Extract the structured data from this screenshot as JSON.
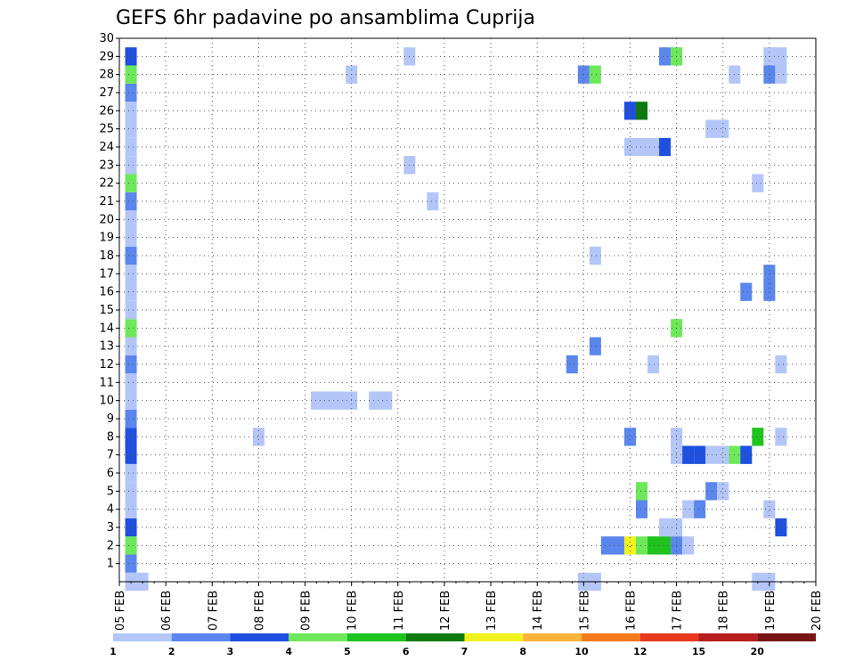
{
  "chart_data": {
    "type": "heatmap",
    "title": "GEFS 6hr padavine po ansamblima Cuprija",
    "xlabel": "",
    "ylabel": "",
    "x_ticks": [
      "05 FEB",
      "06 FEB",
      "07 FEB",
      "08 FEB",
      "09 FEB",
      "10 FEB",
      "11 FEB",
      "12 FEB",
      "13 FEB",
      "14 FEB",
      "15 FEB",
      "16 FEB",
      "17 FEB",
      "18 FEB",
      "19 FEB",
      "20 FEB"
    ],
    "y_ticks": [
      "1",
      "2",
      "3",
      "4",
      "5",
      "6",
      "7",
      "8",
      "9",
      "10",
      "11",
      "12",
      "13",
      "14",
      "15",
      "16",
      "17",
      "18",
      "19",
      "20",
      "21",
      "22",
      "23",
      "24",
      "25",
      "26",
      "27",
      "28",
      "29",
      "30"
    ],
    "xlim_days": [
      0,
      15
    ],
    "ylim": [
      0,
      30
    ],
    "grid": true,
    "colorbar": {
      "levels": [
        "1",
        "2",
        "3",
        "4",
        "5",
        "6",
        "7",
        "8",
        "10",
        "12",
        "15",
        "20"
      ],
      "colors": [
        "#b3c6f7",
        "#5a86ee",
        "#1e4fde",
        "#6ee85a",
        "#1ec31e",
        "#0e7a0e",
        "#f2f21e",
        "#fbb43c",
        "#f37a1e",
        "#e8381e",
        "#b81e1e",
        "#781414"
      ]
    },
    "cells": [
      {
        "member": 1,
        "day": 0.25,
        "w": 1,
        "c": 2
      },
      {
        "member": 2,
        "day": 0.25,
        "w": 1,
        "c": 4
      },
      {
        "member": 3,
        "day": 0.25,
        "w": 1,
        "c": 3
      },
      {
        "member": 4,
        "day": 0.25,
        "w": 1,
        "c": 1
      },
      {
        "member": 5,
        "day": 0.25,
        "w": 1,
        "c": 1
      },
      {
        "member": 6,
        "day": 0.25,
        "w": 1,
        "c": 1
      },
      {
        "member": 7,
        "day": 0.25,
        "w": 1,
        "c": 3
      },
      {
        "member": 8,
        "day": 0.25,
        "w": 1,
        "c": 3
      },
      {
        "member": 9,
        "day": 0.25,
        "w": 1,
        "c": 2
      },
      {
        "member": 10,
        "day": 0.25,
        "w": 1,
        "c": 1
      },
      {
        "member": 11,
        "day": 0.25,
        "w": 1,
        "c": 1
      },
      {
        "member": 12,
        "day": 0.25,
        "w": 1,
        "c": 2
      },
      {
        "member": 13,
        "day": 0.25,
        "w": 1,
        "c": 1
      },
      {
        "member": 14,
        "day": 0.25,
        "w": 1,
        "c": 4
      },
      {
        "member": 15,
        "day": 0.25,
        "w": 1,
        "c": 1
      },
      {
        "member": 16,
        "day": 0.25,
        "w": 1,
        "c": 1
      },
      {
        "member": 17,
        "day": 0.25,
        "w": 1,
        "c": 1
      },
      {
        "member": 18,
        "day": 0.25,
        "w": 1,
        "c": 2
      },
      {
        "member": 19,
        "day": 0.25,
        "w": 1,
        "c": 1
      },
      {
        "member": 20,
        "day": 0.25,
        "w": 1,
        "c": 1
      },
      {
        "member": 21,
        "day": 0.25,
        "w": 1,
        "c": 2
      },
      {
        "member": 22,
        "day": 0.25,
        "w": 1,
        "c": 4
      },
      {
        "member": 23,
        "day": 0.25,
        "w": 1,
        "c": 1
      },
      {
        "member": 24,
        "day": 0.25,
        "w": 1,
        "c": 1
      },
      {
        "member": 25,
        "day": 0.25,
        "w": 1,
        "c": 1
      },
      {
        "member": 26,
        "day": 0.25,
        "w": 1,
        "c": 1
      },
      {
        "member": 27,
        "day": 0.25,
        "w": 1,
        "c": 2
      },
      {
        "member": 28,
        "day": 0.25,
        "w": 1,
        "c": 4
      },
      {
        "member": 29,
        "day": 0.25,
        "w": 1,
        "c": 3
      },
      {
        "member": 0,
        "day": 0.25,
        "w": 1,
        "c": 1
      },
      {
        "member": 0,
        "day": 0.5,
        "w": 1,
        "c": 1
      },
      {
        "member": 8,
        "day": 3.0,
        "w": 1,
        "c": 1
      },
      {
        "member": 10,
        "day": 4.25,
        "w": 4,
        "c": 1
      },
      {
        "member": 10,
        "day": 5.5,
        "w": 2,
        "c": 1
      },
      {
        "member": 28,
        "day": 5.0,
        "w": 1,
        "c": 1
      },
      {
        "member": 29,
        "day": 6.25,
        "w": 1,
        "c": 1
      },
      {
        "member": 23,
        "day": 6.25,
        "w": 1,
        "c": 1
      },
      {
        "member": 21,
        "day": 6.75,
        "w": 1,
        "c": 1
      },
      {
        "member": 12,
        "day": 9.75,
        "w": 1,
        "c": 2
      },
      {
        "member": 13,
        "day": 10.25,
        "w": 1,
        "c": 2
      },
      {
        "member": 18,
        "day": 10.25,
        "w": 1,
        "c": 1
      },
      {
        "member": 28,
        "day": 10.0,
        "w": 1,
        "c": 2
      },
      {
        "member": 28,
        "day": 10.25,
        "w": 1,
        "c": 4
      },
      {
        "member": 0,
        "day": 10.0,
        "w": 2,
        "c": 1
      },
      {
        "member": 2,
        "day": 10.5,
        "w": 2,
        "c": 2
      },
      {
        "member": 2,
        "day": 11.0,
        "w": 1,
        "c": 7
      },
      {
        "member": 2,
        "day": 11.25,
        "w": 1,
        "c": 4
      },
      {
        "member": 2,
        "day": 11.5,
        "w": 2,
        "c": 5
      },
      {
        "member": 2,
        "day": 12.0,
        "w": 1,
        "c": 2
      },
      {
        "member": 2,
        "day": 12.25,
        "w": 1,
        "c": 1
      },
      {
        "member": 3,
        "day": 11.75,
        "w": 2,
        "c": 1
      },
      {
        "member": 4,
        "day": 11.25,
        "w": 1,
        "c": 2
      },
      {
        "member": 5,
        "day": 11.25,
        "w": 1,
        "c": 4
      },
      {
        "member": 4,
        "day": 12.25,
        "w": 1,
        "c": 1
      },
      {
        "member": 4,
        "day": 12.5,
        "w": 1,
        "c": 2
      },
      {
        "member": 5,
        "day": 12.75,
        "w": 1,
        "c": 2
      },
      {
        "member": 5,
        "day": 13.0,
        "w": 1,
        "c": 1
      },
      {
        "member": 7,
        "day": 12.0,
        "w": 1,
        "c": 1
      },
      {
        "member": 7,
        "day": 12.25,
        "w": 1,
        "c": 3
      },
      {
        "member": 7,
        "day": 12.5,
        "w": 1,
        "c": 3
      },
      {
        "member": 7,
        "day": 12.75,
        "w": 2,
        "c": 1
      },
      {
        "member": 7,
        "day": 13.25,
        "w": 1,
        "c": 4
      },
      {
        "member": 7,
        "day": 13.5,
        "w": 1,
        "c": 3
      },
      {
        "member": 8,
        "day": 11.0,
        "w": 1,
        "c": 2
      },
      {
        "member": 8,
        "day": 12.0,
        "w": 1,
        "c": 1
      },
      {
        "member": 8,
        "day": 13.75,
        "w": 1,
        "c": 5
      },
      {
        "member": 8,
        "day": 14.25,
        "w": 1,
        "c": 1
      },
      {
        "member": 12,
        "day": 11.5,
        "w": 1,
        "c": 1
      },
      {
        "member": 12,
        "day": 14.25,
        "w": 1,
        "c": 1
      },
      {
        "member": 14,
        "day": 12.0,
        "w": 1,
        "c": 4
      },
      {
        "member": 16,
        "day": 13.5,
        "w": 1,
        "c": 2
      },
      {
        "member": 16,
        "day": 14.0,
        "w": 1,
        "c": 2
      },
      {
        "member": 17,
        "day": 14.0,
        "w": 1,
        "c": 2
      },
      {
        "member": 22,
        "day": 13.75,
        "w": 1,
        "c": 1
      },
      {
        "member": 24,
        "day": 11.0,
        "w": 2,
        "c": 1
      },
      {
        "member": 24,
        "day": 11.5,
        "w": 1,
        "c": 1
      },
      {
        "member": 24,
        "day": 11.75,
        "w": 1,
        "c": 3
      },
      {
        "member": 25,
        "day": 12.75,
        "w": 2,
        "c": 1
      },
      {
        "member": 26,
        "day": 11.0,
        "w": 1,
        "c": 3
      },
      {
        "member": 26,
        "day": 11.25,
        "w": 1,
        "c": 6
      },
      {
        "member": 28,
        "day": 13.25,
        "w": 1,
        "c": 1
      },
      {
        "member": 28,
        "day": 14.0,
        "w": 1,
        "c": 2
      },
      {
        "member": 28,
        "day": 14.25,
        "w": 1,
        "c": 1
      },
      {
        "member": 29,
        "day": 11.75,
        "w": 1,
        "c": 2
      },
      {
        "member": 29,
        "day": 12.0,
        "w": 1,
        "c": 4
      },
      {
        "member": 29,
        "day": 14.0,
        "w": 2,
        "c": 1
      },
      {
        "member": 0,
        "day": 13.75,
        "w": 2,
        "c": 1
      },
      {
        "member": 3,
        "day": 14.25,
        "w": 1,
        "c": 3
      },
      {
        "member": 4,
        "day": 14.0,
        "w": 1,
        "c": 1
      }
    ]
  }
}
